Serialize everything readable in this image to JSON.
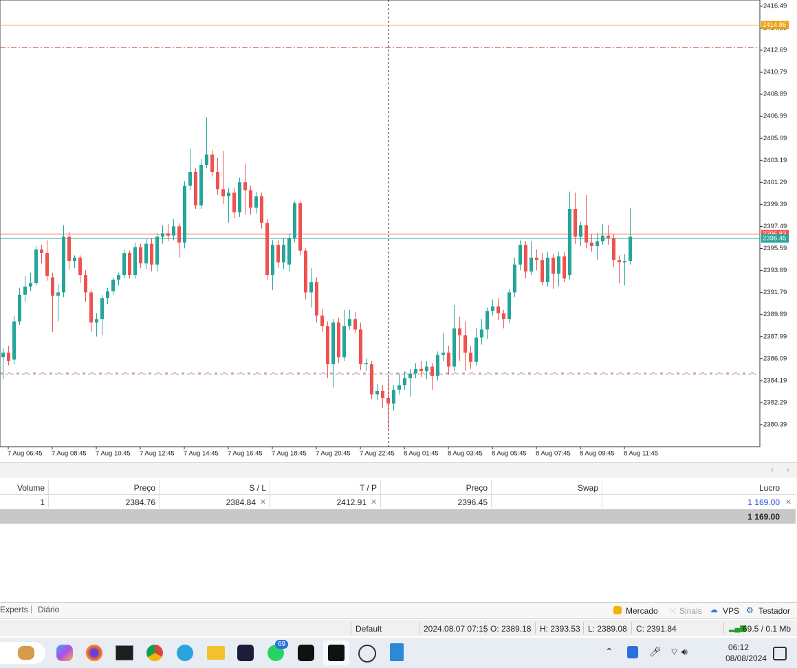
{
  "chart_data": {
    "type": "candlestick",
    "categories": [
      null,
      "7 Aug 06:45",
      null,
      null,
      null,
      null,
      null,
      null,
      null,
      "7 Aug 08:45",
      null,
      null,
      null,
      null,
      null,
      null,
      null,
      "7 Aug 10:45",
      null,
      null,
      null,
      null,
      null,
      null,
      null,
      "7 Aug 12:45",
      null,
      null,
      null,
      null,
      null,
      null,
      null,
      "7 Aug 14:45",
      null,
      null,
      null,
      null,
      null,
      null,
      null,
      "7 Aug 16:45",
      null,
      null,
      null,
      null,
      null,
      null,
      null,
      "7 Aug 18:45",
      null,
      null,
      null,
      null,
      null,
      null,
      null,
      "7 Aug 20:45",
      null,
      null,
      null,
      null,
      null,
      null,
      null,
      "7 Aug 22:45",
      null,
      null,
      null,
      null,
      null,
      null,
      null,
      "8 Aug 01:45",
      null,
      null,
      null,
      null,
      null,
      null,
      null,
      "8 Aug 03:45",
      null,
      null,
      null,
      null,
      null,
      null,
      null,
      "8 Aug 05:45",
      null,
      null,
      null,
      null,
      null,
      null,
      null,
      "8 Aug 07:45",
      null,
      null,
      null,
      null,
      null,
      null,
      null,
      "8 Aug 09:45",
      null,
      null,
      null,
      null,
      null,
      null,
      null,
      "8 Aug 11:45",
      null
    ],
    "open": [
      2386.2,
      2386.6,
      2386.0,
      2389.3,
      2391.6,
      2392.3,
      2392.6,
      2395.5,
      2395.2,
      2393.1,
      2391.5,
      2391.8,
      2396.6,
      2394.5,
      2394.8,
      2393.3,
      2391.8,
      2389.2,
      2389.5,
      2391.3,
      2391.9,
      2392.9,
      2393.3,
      2395.2,
      2393.3,
      2395.7,
      2394.3,
      2396.0,
      2394.2,
      2396.6,
      2396.9,
      2396.7,
      2397.5,
      2396.1,
      2401.0,
      2402.2,
      2399.3,
      2402.8,
      2403.7,
      2402.2,
      2400.7,
      2400.1,
      2400.4,
      2398.7,
      2401.3,
      2400.6,
      2399.1,
      2400.1,
      2397.8,
      2393.3,
      2395.9,
      2394.4,
      2394.2,
      2396.5,
      2399.5,
      2395.4,
      2391.8,
      2392.7,
      2389.8,
      2388.9,
      2385.6,
      2389.2,
      2386.2,
      2388.9,
      2389.5,
      2388.6,
      2385.6,
      2385.6,
      2383.0,
      2383.3,
      2382.7,
      2382.2,
      2383.4,
      2383.8,
      2384.4,
      2384.8,
      2385.2,
      2385.0,
      2385.4,
      2384.6,
      2386.4,
      2386.6,
      2385.4,
      2388.7,
      2388.1,
      2386.6,
      2385.8,
      2387.9,
      2388.6,
      2390.2,
      2390.6,
      2390.0,
      2389.5,
      2391.8,
      2394.2,
      2395.9,
      2393.6,
      2394.8,
      2394.6,
      2392.7,
      2394.8,
      2393.4,
      2394.9,
      2393.3,
      2399.0,
      2396.6,
      2397.6,
      2396.1,
      2395.8,
      2396.2,
      2396.7,
      2396.5,
      2394.6,
      2394.4,
      2394.5
    ],
    "high": [
      2387.0,
      2387.2,
      2389.8,
      2392.2,
      2393.2,
      2393.5,
      2395.8,
      2395.9,
      2396.3,
      2393.5,
      2392.5,
      2397.6,
      2397.0,
      2395.0,
      2395.0,
      2393.7,
      2392.0,
      2390.0,
      2391.6,
      2392.2,
      2393.1,
      2393.5,
      2395.5,
      2395.4,
      2396.1,
      2396.0,
      2396.4,
      2396.5,
      2396.9,
      2397.6,
      2397.7,
      2398.1,
      2397.8,
      2401.4,
      2404.2,
      2402.5,
      2403.3,
      2406.9,
      2404.1,
      2403.4,
      2404.0,
      2400.8,
      2400.8,
      2401.7,
      2402.9,
      2401.0,
      2400.5,
      2400.4,
      2398.1,
      2396.3,
      2396.3,
      2396.5,
      2396.9,
      2399.7,
      2399.7,
      2395.6,
      2393.9,
      2393.1,
      2390.4,
      2389.3,
      2389.5,
      2389.6,
      2390.3,
      2390.3,
      2390.1,
      2389.2,
      2386.1,
      2385.9,
      2383.9,
      2383.8,
      2384.5,
      2383.8,
      2384.8,
      2385.0,
      2385.2,
      2385.7,
      2385.9,
      2385.9,
      2385.7,
      2386.7,
      2388.3,
      2387.2,
      2390.7,
      2389.7,
      2389.3,
      2387.2,
      2388.7,
      2389.5,
      2390.5,
      2391.2,
      2391.3,
      2390.3,
      2392.1,
      2394.8,
      2396.3,
      2396.2,
      2396.2,
      2395.5,
      2395.2,
      2395.3,
      2395.1,
      2395.3,
      2395.3,
      2400.5,
      2400.4,
      2397.9,
      2400.2,
      2396.8,
      2396.9,
      2397.7,
      2397.6,
      2396.8,
      2395.0,
      2395.1,
      2399.1
    ],
    "low": [
      2384.3,
      2385.5,
      2385.6,
      2389.0,
      2391.0,
      2391.9,
      2392.4,
      2394.3,
      2392.8,
      2388.4,
      2389.3,
      2391.4,
      2393.8,
      2393.9,
      2392.6,
      2391.0,
      2388.4,
      2388.0,
      2388.1,
      2390.8,
      2391.6,
      2392.4,
      2393.0,
      2393.0,
      2393.0,
      2393.9,
      2393.8,
      2393.6,
      2393.6,
      2396.0,
      2396.2,
      2396.3,
      2394.8,
      2395.6,
      2400.6,
      2399.0,
      2399.0,
      2402.5,
      2401.8,
      2400.2,
      2399.4,
      2397.8,
      2398.2,
      2398.3,
      2398.5,
      2398.5,
      2398.6,
      2397.3,
      2392.9,
      2392.0,
      2393.9,
      2393.8,
      2393.6,
      2396.1,
      2395.0,
      2391.2,
      2390.5,
      2389.2,
      2388.4,
      2384.4,
      2383.6,
      2385.7,
      2385.9,
      2388.6,
      2388.3,
      2385.1,
      2385.0,
      2382.6,
      2382.5,
      2381.8,
      2380.0,
      2381.6,
      2383.0,
      2383.4,
      2382.8,
      2384.4,
      2384.5,
      2384.3,
      2383.4,
      2384.2,
      2385.9,
      2384.7,
      2385.0,
      2385.9,
      2385.0,
      2385.2,
      2385.5,
      2387.3,
      2387.8,
      2389.8,
      2389.4,
      2388.7,
      2389.2,
      2391.4,
      2393.7,
      2393.0,
      2393.3,
      2393.7,
      2392.4,
      2392.3,
      2392.1,
      2392.3,
      2392.7,
      2392.9,
      2396.0,
      2395.8,
      2395.6,
      2395.3,
      2394.6,
      2395.9,
      2395.9,
      2394.0,
      2392.6,
      2392.4,
      2394.2
    ],
    "close": [
      2386.6,
      2385.9,
      2389.3,
      2391.6,
      2392.3,
      2392.6,
      2395.5,
      2395.2,
      2393.2,
      2391.5,
      2391.8,
      2396.6,
      2394.5,
      2394.8,
      2393.3,
      2391.8,
      2389.2,
      2389.5,
      2391.3,
      2391.9,
      2392.9,
      2393.3,
      2395.2,
      2393.3,
      2395.7,
      2394.3,
      2396.0,
      2394.2,
      2396.6,
      2396.9,
      2396.7,
      2397.5,
      2396.1,
      2401.0,
      2402.2,
      2399.3,
      2402.8,
      2403.7,
      2402.2,
      2400.7,
      2400.1,
      2400.4,
      2398.7,
      2401.3,
      2400.6,
      2399.1,
      2400.1,
      2397.8,
      2393.3,
      2395.9,
      2394.4,
      2395.9,
      2396.5,
      2399.5,
      2395.4,
      2391.8,
      2392.7,
      2389.8,
      2388.9,
      2385.6,
      2389.2,
      2386.2,
      2388.9,
      2389.5,
      2388.6,
      2385.6,
      2385.7,
      2383.0,
      2383.3,
      2382.7,
      2382.2,
      2383.4,
      2383.8,
      2384.4,
      2384.8,
      2385.2,
      2385.0,
      2385.4,
      2384.6,
      2386.4,
      2386.6,
      2385.4,
      2388.7,
      2388.1,
      2386.6,
      2385.8,
      2387.9,
      2388.6,
      2390.2,
      2390.6,
      2390.0,
      2389.5,
      2391.8,
      2394.2,
      2395.9,
      2393.6,
      2394.8,
      2394.6,
      2392.7,
      2394.8,
      2393.4,
      2394.9,
      2393.0,
      2399.0,
      2396.6,
      2397.6,
      2396.1,
      2395.8,
      2396.2,
      2396.7,
      2396.5,
      2394.6,
      2394.4,
      2394.5,
      2396.6
    ],
    "up_color": "#26a69a",
    "down_color": "#ef5350",
    "ylim": [
      2378.49,
      2417.02
    ],
    "yticks": [
      2416.49,
      2414.59,
      2412.69,
      2410.79,
      2408.89,
      2406.99,
      2405.09,
      2403.19,
      2401.29,
      2399.39,
      2397.49,
      2395.59,
      2393.69,
      2391.79,
      2389.89,
      2387.99,
      2386.09,
      2384.19,
      2382.29,
      2380.39
    ],
    "levels": [
      {
        "value": 2412.91,
        "color": "#d9534f",
        "dash": "8 3 2 3"
      },
      {
        "value": 2384.76,
        "color": "#9a9a9a",
        "dash": "4 4"
      },
      {
        "value": 2384.84,
        "color": "#d9534f",
        "dash": "4 8"
      }
    ],
    "price_tags": [
      {
        "value": 2414.86,
        "color": "#e8a317"
      },
      {
        "value": 2396.83,
        "color": "#ef5350"
      },
      {
        "value": 2396.45,
        "color": "#26a69a"
      }
    ]
  },
  "toolbox": {
    "columns": [
      "Volume",
      "Preço",
      "S / L",
      "T / P",
      "Preço",
      "Swap",
      "Lucro"
    ],
    "rows": [
      {
        "volume": 1,
        "open_price": 2384.76,
        "sl": 2384.84,
        "tp": 2412.91,
        "price": 2396.45,
        "profit": "1 169.00"
      }
    ],
    "total": "1 169.00",
    "tabs": [
      "Experts",
      "Diário"
    ],
    "right_tabs": [
      "Mercado",
      "Sinais",
      "VPS",
      "Testador"
    ]
  },
  "status_bar": {
    "profile": "Default",
    "time": "2024.08.07 07:15",
    "open": "O: 2389.18",
    "high": "H: 2393.53",
    "low": "L: 2389.08",
    "close": "C: 2391.84",
    "memory": "69.5 / 0.1 Mb"
  },
  "taskbar": {
    "badge": "69",
    "time": "06:12",
    "date": "08/08/2024"
  }
}
